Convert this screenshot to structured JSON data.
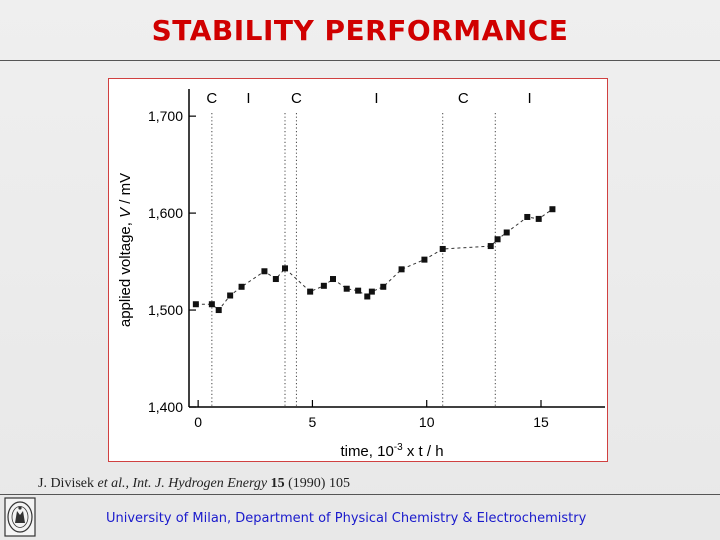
{
  "slide": {
    "title": "STABILITY PERFORMANCE",
    "citation": {
      "authors": "J. Divisek",
      "etal": "et al.,",
      "journal": "Int. J. Hydrogen Energy",
      "volume": "15",
      "rest": "(1990) 105"
    },
    "footer": "University of Milan, Department of Physical Chemistry & Electrochemistry"
  },
  "colors": {
    "title": "#d00000",
    "footer": "#1a1acc",
    "frame": "#d04040"
  },
  "chart_data": {
    "type": "scatter",
    "xlabel": "time,  10",
    "xlabel_sup": "-3",
    "xlabel_tail": " x t / h",
    "ylabel": "applied voltage,  V / mV",
    "xlim": [
      -0.4,
      17.8
    ],
    "ylim": [
      1400,
      1728
    ],
    "x_ticks": [
      0,
      5,
      10,
      15
    ],
    "y_ticks": [
      1400,
      1500,
      1600,
      1700
    ],
    "y_tick_labels": [
      "1,400",
      "1,500",
      "1,600",
      "1,700"
    ],
    "grid": false,
    "phase_markers": [
      {
        "label": "C",
        "x": 0.6
      },
      {
        "label": "I",
        "x": 2.2
      },
      {
        "label": "C",
        "x": 4.3
      },
      {
        "label": "I",
        "x": 7.8
      },
      {
        "label": "C",
        "x": 11.6
      },
      {
        "label": "I",
        "x": 14.5
      }
    ],
    "phase_boundaries": [
      0.6,
      3.8,
      4.3,
      10.7,
      13.0
    ],
    "series": [
      {
        "name": "applied voltage",
        "points": [
          {
            "x": -0.1,
            "y": 1506
          },
          {
            "x": 0.6,
            "y": 1506
          },
          {
            "x": 0.9,
            "y": 1500
          },
          {
            "x": 1.4,
            "y": 1515
          },
          {
            "x": 1.9,
            "y": 1524
          },
          {
            "x": 2.9,
            "y": 1540
          },
          {
            "x": 3.4,
            "y": 1532
          },
          {
            "x": 3.8,
            "y": 1543
          },
          {
            "x": 4.9,
            "y": 1519
          },
          {
            "x": 5.5,
            "y": 1525
          },
          {
            "x": 5.9,
            "y": 1532
          },
          {
            "x": 6.5,
            "y": 1522
          },
          {
            "x": 7.0,
            "y": 1520
          },
          {
            "x": 7.4,
            "y": 1514
          },
          {
            "x": 7.6,
            "y": 1519
          },
          {
            "x": 8.1,
            "y": 1524
          },
          {
            "x": 8.9,
            "y": 1542
          },
          {
            "x": 9.9,
            "y": 1552
          },
          {
            "x": 10.7,
            "y": 1563
          },
          {
            "x": 12.8,
            "y": 1566
          },
          {
            "x": 13.1,
            "y": 1573
          },
          {
            "x": 13.5,
            "y": 1580
          },
          {
            "x": 14.4,
            "y": 1596
          },
          {
            "x": 14.9,
            "y": 1594
          },
          {
            "x": 15.5,
            "y": 1604
          }
        ]
      }
    ]
  }
}
